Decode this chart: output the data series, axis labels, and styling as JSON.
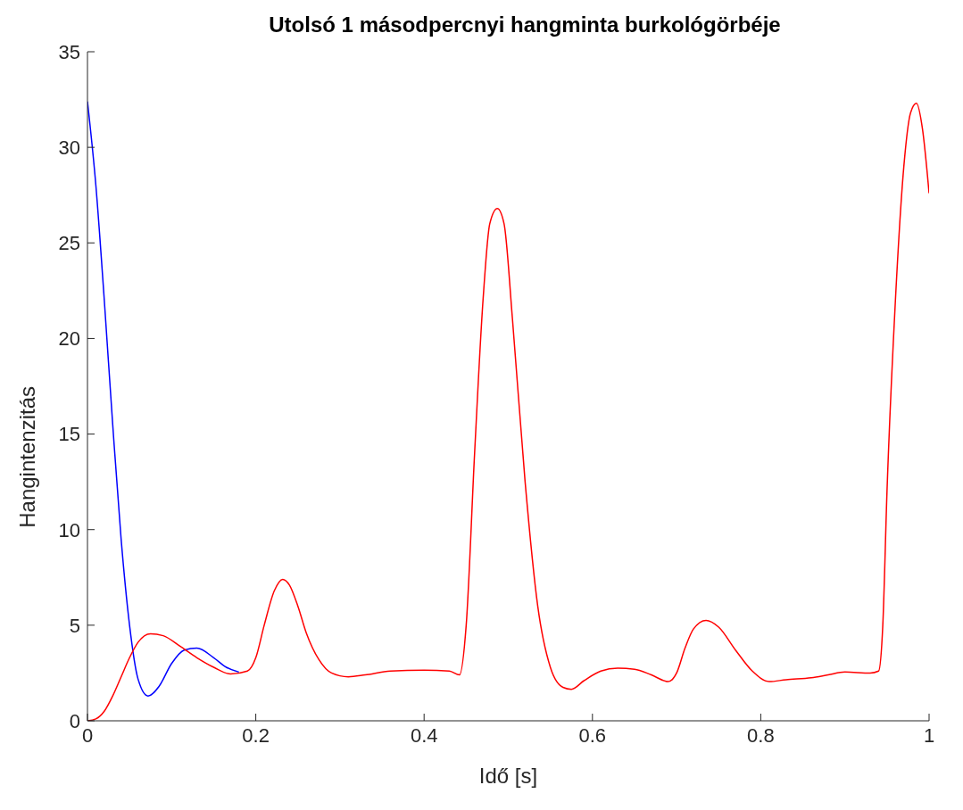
{
  "chart_data": {
    "type": "line",
    "title": "Utolsó 1 másodpercnyi hangminta burkológörbéje",
    "xlabel": "Idő [s]",
    "ylabel": "Hangintenzitás",
    "xlim": [
      0,
      1
    ],
    "xticks": [
      0,
      0.2,
      0.4,
      0.6,
      0.8,
      1
    ],
    "ylim": [
      0,
      35
    ],
    "yticks": [
      0,
      5,
      10,
      15,
      20,
      25,
      30,
      35
    ],
    "grid": false,
    "marker": "none",
    "line_style": "solid",
    "series": [
      {
        "color": "#0000ff",
        "x": [
          0,
          0.01,
          0.02,
          0.03,
          0.04,
          0.05,
          0.06,
          0.072,
          0.085,
          0.1,
          0.115,
          0.13,
          0.15,
          0.165,
          0.18
        ],
        "values": [
          32.4,
          28,
          22,
          15.5,
          9.5,
          5,
          2.2,
          1.3,
          1.8,
          3,
          3.7,
          3.8,
          3.3,
          2.8,
          2.55
        ]
      },
      {
        "color": "#ff0000",
        "x": [
          0,
          0.01,
          0.02,
          0.03,
          0.04,
          0.05,
          0.06,
          0.075,
          0.09,
          0.11,
          0.13,
          0.15,
          0.17,
          0.19,
          0.2,
          0.21,
          0.222,
          0.232,
          0.24,
          0.25,
          0.26,
          0.275,
          0.29,
          0.31,
          0.33,
          0.36,
          0.4,
          0.43,
          0.442,
          0.45,
          0.46,
          0.47,
          0.478,
          0.487,
          0.495,
          0.505,
          0.52,
          0.535,
          0.55,
          0.565,
          0.575,
          0.59,
          0.61,
          0.63,
          0.65,
          0.67,
          0.69,
          0.7,
          0.71,
          0.72,
          0.735,
          0.75,
          0.77,
          0.79,
          0.81,
          0.83,
          0.86,
          0.88,
          0.9,
          0.93,
          0.94,
          0.945,
          0.95,
          0.96,
          0.97,
          0.978,
          0.985,
          0.992,
          1
        ],
        "values": [
          0,
          0.1,
          0.5,
          1.3,
          2.3,
          3.3,
          4.1,
          4.55,
          4.45,
          3.9,
          3.3,
          2.8,
          2.45,
          2.6,
          3.3,
          5,
          6.8,
          7.4,
          7.1,
          6,
          4.6,
          3.2,
          2.5,
          2.3,
          2.4,
          2.6,
          2.65,
          2.6,
          2.4,
          5,
          14,
          22,
          26,
          26.8,
          26,
          21,
          12.5,
          6,
          2.8,
          1.75,
          1.65,
          2.1,
          2.6,
          2.75,
          2.7,
          2.4,
          2.05,
          2.5,
          3.8,
          4.8,
          5.25,
          4.9,
          3.7,
          2.6,
          2.05,
          2.15,
          2.25,
          2.4,
          2.55,
          2.5,
          2.6,
          5,
          12,
          22,
          29,
          31.8,
          32.3,
          31,
          27.6
        ]
      }
    ]
  }
}
